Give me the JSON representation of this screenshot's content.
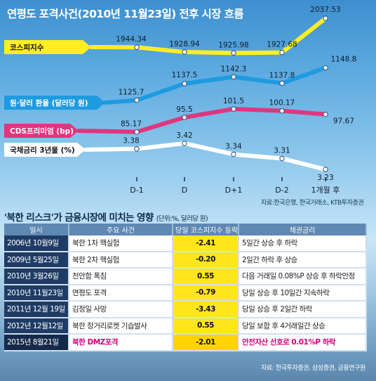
{
  "title": "연평도 포격사건(2010년 11월23일) 전후 시장 흐름",
  "chart_data": {
    "type": "line",
    "categories": [
      "D-1",
      "D",
      "D+1",
      "D-2",
      "1개월 후"
    ],
    "series": [
      {
        "name": "코스피지수",
        "values": [
          1944.34,
          1928.94,
          1925.98,
          1927.68,
          2037.53
        ],
        "labels": [
          "1944.34",
          "1928.94",
          "1925.98",
          "1927.68",
          "2037.53"
        ],
        "color": "#ffee22"
      },
      {
        "name": "원·달러 환율 (달러당 원)",
        "values": [
          1125.7,
          1137.5,
          1142.3,
          1137.8,
          1148.8
        ],
        "labels": [
          "1125.7",
          "1137.5",
          "1142.3",
          "1137.8",
          "1148.8"
        ],
        "color": "#1e9be0"
      },
      {
        "name": "CDS프리미엄 (bp)",
        "values": [
          85.17,
          95.5,
          101.5,
          100.17,
          97.67
        ],
        "labels": [
          "85.17",
          "95.5",
          "101.5",
          "100.17",
          "97.67"
        ],
        "color": "#e0367e"
      },
      {
        "name": "국채금리 3년물 (%)",
        "values": [
          3.38,
          3.42,
          3.34,
          3.31,
          3.23
        ],
        "labels": [
          "3.38",
          "3.42",
          "3.34",
          "3.31",
          "3.23"
        ],
        "color": "#ffffff"
      }
    ]
  },
  "chart_source": "자료:한국은행, 한국거래소, KTB투자증권",
  "table_title": "'북한 리스크'가 금융시장에 미치는 영향",
  "table_unit": "(단위:%, 달러당 원)",
  "table": {
    "headers": [
      "일시",
      "주요 사건",
      "당일 코스피지수 등락률",
      "채권금리"
    ],
    "rows": [
      {
        "date": "2006년 10월9일",
        "event": "북한 1차 핵실험",
        "change": "-2.41",
        "bond": "5일간 상승 후 하락"
      },
      {
        "date": "2009년 5월25일",
        "event": "북한 2차 핵실험",
        "change": "-0.20",
        "bond": "2일간 하락 후 상승"
      },
      {
        "date": "2010년 3월26일",
        "event": "천안함 폭침",
        "change": "0.55",
        "bond": "다음 거래일 0.08%P 상승 후 하락안정"
      },
      {
        "date": "2010년 11월23일",
        "event": "연평도 포격",
        "change": "-0.79",
        "bond": "당일 상승 후 10일간 지속하락"
      },
      {
        "date": "2011년 12월 19일",
        "event": "김정일 사망",
        "change": "-3.43",
        "bond": "당일 상승 후 2일간 하락"
      },
      {
        "date": "2012년 12월12일",
        "event": "북한 장거리로켓 기습발사",
        "change": "0.55",
        "bond": "당일 보합 후 4거래일간 상승"
      },
      {
        "date": "2015년 8월21일",
        "event": "북한 DMZ포격",
        "change": "-2.01",
        "bond": "안전자산 선호로 0.01%P 하락",
        "highlight": true
      }
    ]
  },
  "table_source": "자료: 한국투자증권, 삼성증권, 금융연구원"
}
